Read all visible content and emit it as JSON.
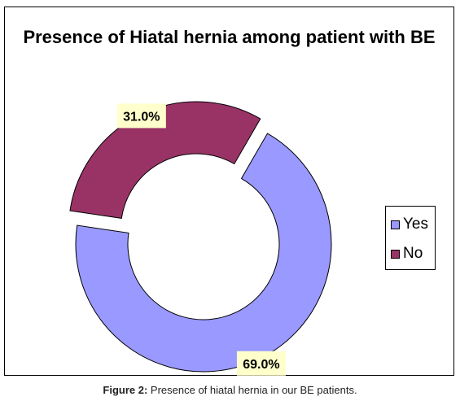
{
  "chart_data": {
    "type": "pie",
    "style": "donut-exploded",
    "title": "Presence of Hiatal hernia among patient with BE",
    "categories": [
      "Yes",
      "No"
    ],
    "values": [
      69.0,
      31.0
    ],
    "data_labels": [
      "69.0%",
      "31.0%"
    ],
    "colors": [
      "#9999ff",
      "#993366"
    ],
    "label_background": "#ffffcc",
    "legend": {
      "placement": "right",
      "entries": [
        "Yes",
        "No"
      ]
    }
  },
  "caption": {
    "label": "Figure 2:",
    "text": " Presence of hiatal hernia in our BE patients."
  }
}
